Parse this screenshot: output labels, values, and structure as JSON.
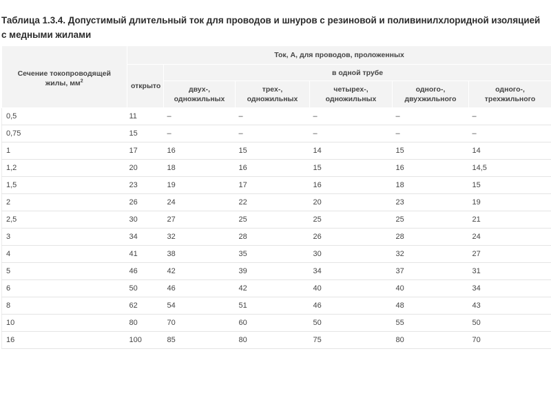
{
  "caption": "Таблица 1.3.4. Допустимый длительный ток для проводов и шнуров с резиновой и поливинилхлоридной изоляцией с медными жилами",
  "header": {
    "section_label": "Сечение токопроводящей жилы, мм",
    "section_unit_sup": "2",
    "current_group": "Ток, А, для проводов, проложенных",
    "open": "открыто",
    "in_pipe": "в одной трубе",
    "col_two_single_line1": "двух-,",
    "col_two_single_line2": "одножильных",
    "col_three_single_line1": "трех-,",
    "col_three_single_line2": "одножильных",
    "col_four_single_line1": "четырех-,",
    "col_four_single_line2": "одножильных",
    "col_one_two_core_line1": "одного-,",
    "col_one_two_core_line2": "двухжильного",
    "col_one_three_core_line1": "одного-,",
    "col_one_three_core_line2": "трехжильного"
  },
  "rows": [
    [
      "0,5",
      "11",
      "–",
      "–",
      "–",
      "–",
      "–"
    ],
    [
      "0,75",
      "15",
      "–",
      "–",
      "–",
      "–",
      "–"
    ],
    [
      "1",
      "17",
      "16",
      "15",
      "14",
      "15",
      "14"
    ],
    [
      "1,2",
      "20",
      "18",
      "16",
      "15",
      "16",
      "14,5"
    ],
    [
      "1,5",
      "23",
      "19",
      "17",
      "16",
      "18",
      "15"
    ],
    [
      "2",
      "26",
      "24",
      "22",
      "20",
      "23",
      "19"
    ],
    [
      "2,5",
      "30",
      "27",
      "25",
      "25",
      "25",
      "21"
    ],
    [
      "3",
      "34",
      "32",
      "28",
      "26",
      "28",
      "24"
    ],
    [
      "4",
      "41",
      "38",
      "35",
      "30",
      "32",
      "27"
    ],
    [
      "5",
      "46",
      "42",
      "39",
      "34",
      "37",
      "31"
    ],
    [
      "6",
      "50",
      "46",
      "42",
      "40",
      "40",
      "34"
    ],
    [
      "8",
      "62",
      "54",
      "51",
      "46",
      "48",
      "43"
    ],
    [
      "10",
      "80",
      "70",
      "60",
      "50",
      "55",
      "50"
    ],
    [
      "16",
      "100",
      "85",
      "80",
      "75",
      "80",
      "70"
    ]
  ]
}
